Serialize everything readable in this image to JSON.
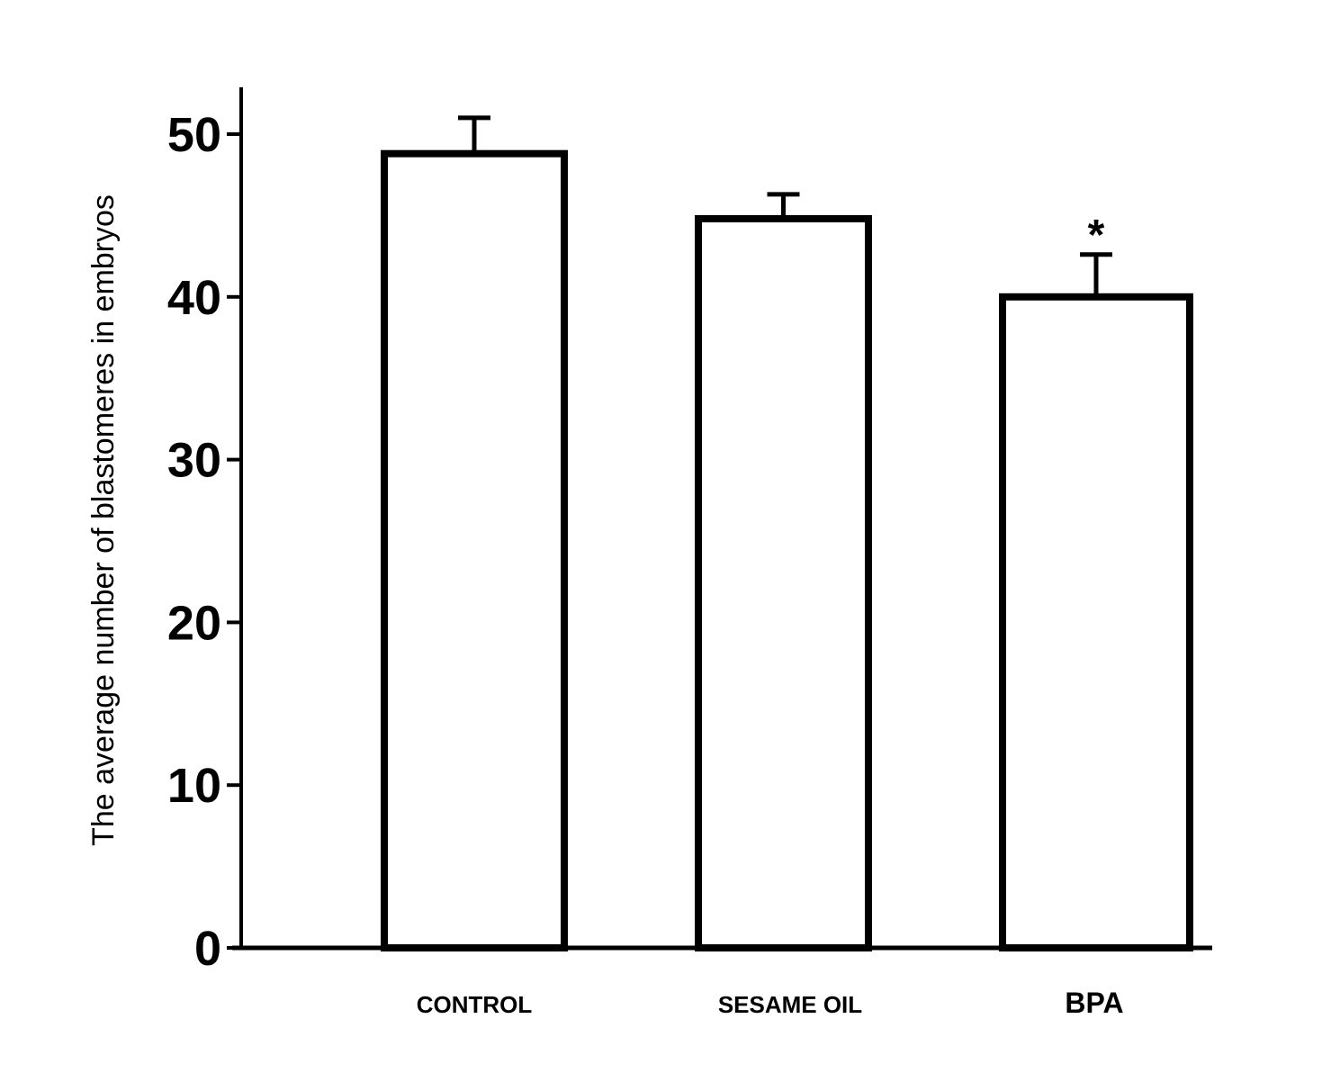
{
  "chart_data": {
    "type": "bar",
    "categories": [
      "CONTROL",
      "SESAME OIL",
      "BPA"
    ],
    "values": [
      48.8,
      44.8,
      40.0
    ],
    "error_upper": [
      51.0,
      46.3,
      42.6
    ],
    "annotations": [
      "",
      "",
      "*"
    ],
    "ylabel": "The average number of blastomeres in  embryos",
    "xlabel": "",
    "ylim": [
      0,
      50
    ],
    "yticks": [
      0,
      10,
      20,
      30,
      40,
      50
    ],
    "grid": false,
    "legend": "none",
    "colors": {
      "bar_fill": "#ffffff",
      "bar_stroke": "#000000",
      "axis": "#000000"
    }
  }
}
